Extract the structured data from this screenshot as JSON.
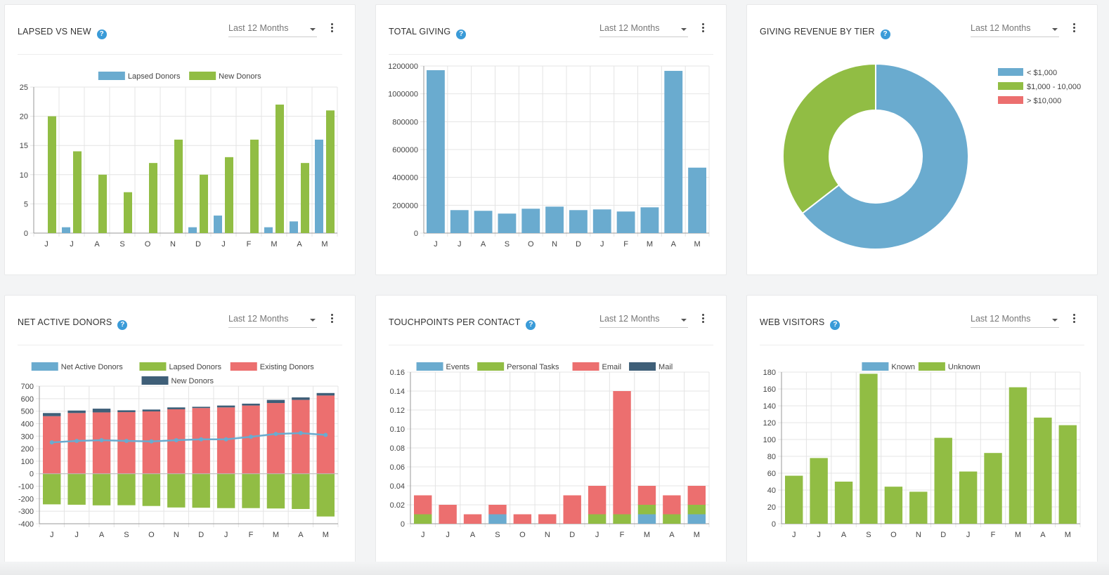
{
  "colors": {
    "blue": "#6aabcf",
    "green": "#91bd44",
    "red": "#ec6f6f",
    "navy": "#3f5f78",
    "grid": "#e4e4e4",
    "axis": "#999999",
    "help": "#3a9bd8"
  },
  "dropdown_value": "Last 12 Months",
  "help_glyph": "?",
  "chart_data": [
    {
      "id": "lapsed",
      "type": "bar",
      "title": "LAPSED VS NEW",
      "categories": [
        "J",
        "J",
        "A",
        "S",
        "O",
        "N",
        "D",
        "J",
        "F",
        "M",
        "A",
        "M"
      ],
      "series": [
        {
          "name": "Lapsed Donors",
          "color": "#6aabcf",
          "values": [
            0,
            1,
            0,
            0,
            0,
            0,
            1,
            3,
            0,
            1,
            2,
            16
          ]
        },
        {
          "name": "New Donors",
          "color": "#91bd44",
          "values": [
            20,
            14,
            10,
            7,
            12,
            16,
            10,
            13,
            16,
            22,
            12,
            21
          ]
        }
      ],
      "ylim": [
        0,
        25
      ],
      "yticks": [
        0,
        5,
        10,
        15,
        20,
        25
      ],
      "ytick_labels": [
        "0",
        "5",
        "10",
        "15",
        "20",
        "25"
      ]
    },
    {
      "id": "giving",
      "type": "bar",
      "title": "TOTAL GIVING",
      "categories": [
        "J",
        "J",
        "A",
        "S",
        "O",
        "N",
        "D",
        "J",
        "F",
        "M",
        "A",
        "M"
      ],
      "series": [
        {
          "name": "Total Giving",
          "color": "#6aabcf",
          "values": [
            1170000,
            165000,
            160000,
            140000,
            175000,
            190000,
            165000,
            170000,
            155000,
            185000,
            1165000,
            470000
          ]
        }
      ],
      "ylim": [
        0,
        1200000
      ],
      "yticks": [
        0,
        200000,
        400000,
        600000,
        800000,
        1000000,
        1200000
      ],
      "ytick_labels": [
        "0",
        "200000",
        "400000",
        "600000",
        "800000",
        "1000000",
        "1200000"
      ]
    },
    {
      "id": "tier",
      "type": "pie",
      "title": "GIVING REVENUE BY TIER",
      "categories": [
        "< $1,000",
        "$1,000 - 10,000",
        "> $10,000"
      ],
      "values": [
        64.5,
        35.5,
        0
      ],
      "colors": [
        "#6aabcf",
        "#91bd44",
        "#ec6f6f"
      ],
      "legend": "top-right"
    },
    {
      "id": "net",
      "type": "bar",
      "title": "NET ACTIVE DONORS",
      "categories": [
        "J",
        "J",
        "A",
        "S",
        "O",
        "N",
        "D",
        "J",
        "F",
        "M",
        "A",
        "M"
      ],
      "series": [
        {
          "name": "Net Active Donors",
          "color": "#6aabcf",
          "kind": "line",
          "values": [
            250,
            262,
            268,
            262,
            258,
            268,
            275,
            275,
            295,
            318,
            325,
            310
          ]
        },
        {
          "name": "Lapsed Donors",
          "color": "#91bd44",
          "values": [
            -245,
            -248,
            -253,
            -252,
            -258,
            -270,
            -272,
            -275,
            -275,
            -278,
            -282,
            -342
          ]
        },
        {
          "name": "Existing Donors",
          "color": "#ec6f6f",
          "values": [
            460,
            485,
            490,
            492,
            498,
            515,
            525,
            530,
            545,
            565,
            590,
            625
          ]
        },
        {
          "name": "New Donors",
          "color": "#3f5f78",
          "values": [
            25,
            20,
            30,
            15,
            15,
            15,
            10,
            15,
            15,
            25,
            20,
            20
          ]
        }
      ],
      "ylim": [
        -400,
        700
      ],
      "yticks": [
        -400,
        -300,
        -200,
        -100,
        0,
        100,
        200,
        300,
        400,
        500,
        600,
        700
      ],
      "ytick_labels": [
        "-400",
        "-300",
        "-200",
        "-100",
        "0",
        "100",
        "200",
        "300",
        "400",
        "500",
        "600",
        "700"
      ]
    },
    {
      "id": "touch",
      "type": "bar",
      "title": "TOUCHPOINTS PER CONTACT",
      "categories": [
        "J",
        "J",
        "A",
        "S",
        "O",
        "N",
        "D",
        "J",
        "F",
        "M",
        "A",
        "M"
      ],
      "series": [
        {
          "name": "Events",
          "color": "#6aabcf",
          "values": [
            0,
            0,
            0,
            0.01,
            0,
            0,
            0,
            0,
            0,
            0.01,
            0,
            0.01
          ]
        },
        {
          "name": "Personal Tasks",
          "color": "#91bd44",
          "values": [
            0.01,
            0,
            0,
            0,
            0,
            0,
            0,
            0.01,
            0.01,
            0.01,
            0.01,
            0.01
          ]
        },
        {
          "name": "Email",
          "color": "#ec6f6f",
          "values": [
            0.02,
            0.02,
            0.01,
            0.01,
            0.01,
            0.01,
            0.03,
            0.03,
            0.13,
            0.02,
            0.02,
            0.02
          ]
        },
        {
          "name": "Mail",
          "color": "#3f5f78",
          "values": [
            0,
            0,
            0,
            0,
            0,
            0,
            0,
            0,
            0,
            0,
            0,
            0
          ]
        }
      ],
      "ylim": [
        0,
        0.16
      ],
      "yticks": [
        0,
        0.02,
        0.04,
        0.06,
        0.08,
        0.1,
        0.12,
        0.14,
        0.16
      ],
      "ytick_labels": [
        "0",
        "0.02",
        "0.04",
        "0.06",
        "0.08",
        "0.10",
        "0.12",
        "0.14",
        "0.16"
      ]
    },
    {
      "id": "web",
      "type": "bar",
      "title": "WEB VISITORS",
      "categories": [
        "J",
        "J",
        "A",
        "S",
        "O",
        "N",
        "D",
        "J",
        "F",
        "M",
        "A",
        "M"
      ],
      "series": [
        {
          "name": "Known",
          "color": "#6aabcf",
          "values": [
            0,
            0,
            0,
            0,
            0,
            0,
            0,
            0,
            0,
            0,
            0,
            0
          ]
        },
        {
          "name": "Unknown",
          "color": "#91bd44",
          "values": [
            57,
            78,
            50,
            178,
            44,
            38,
            102,
            62,
            84,
            162,
            126,
            117
          ]
        }
      ],
      "ylim": [
        0,
        180
      ],
      "yticks": [
        0,
        20,
        40,
        60,
        80,
        100,
        120,
        140,
        160,
        180
      ],
      "ytick_labels": [
        "0",
        "20",
        "40",
        "60",
        "80",
        "100",
        "120",
        "140",
        "160",
        "180"
      ]
    }
  ]
}
